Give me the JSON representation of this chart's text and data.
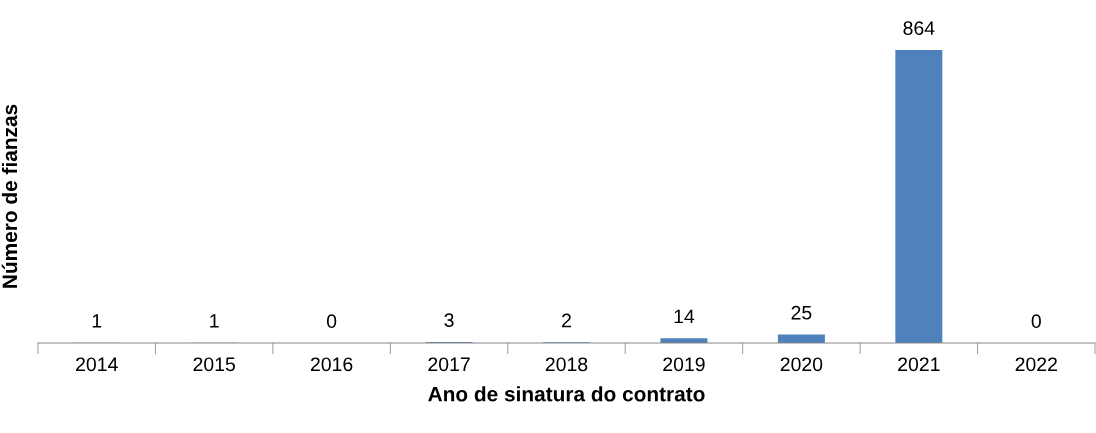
{
  "chart_data": {
    "type": "bar",
    "xlabel": "Ano de sinatura do contrato",
    "ylabel": "Número de fianzas",
    "categories": [
      "2014",
      "2015",
      "2016",
      "2017",
      "2018",
      "2019",
      "2020",
      "2021",
      "2022"
    ],
    "values": [
      1,
      1,
      0,
      3,
      2,
      14,
      25,
      864,
      0
    ],
    "color": "#4f81bd",
    "data_labels": true,
    "tick_labels": "x",
    "grid": false,
    "legend": false
  }
}
